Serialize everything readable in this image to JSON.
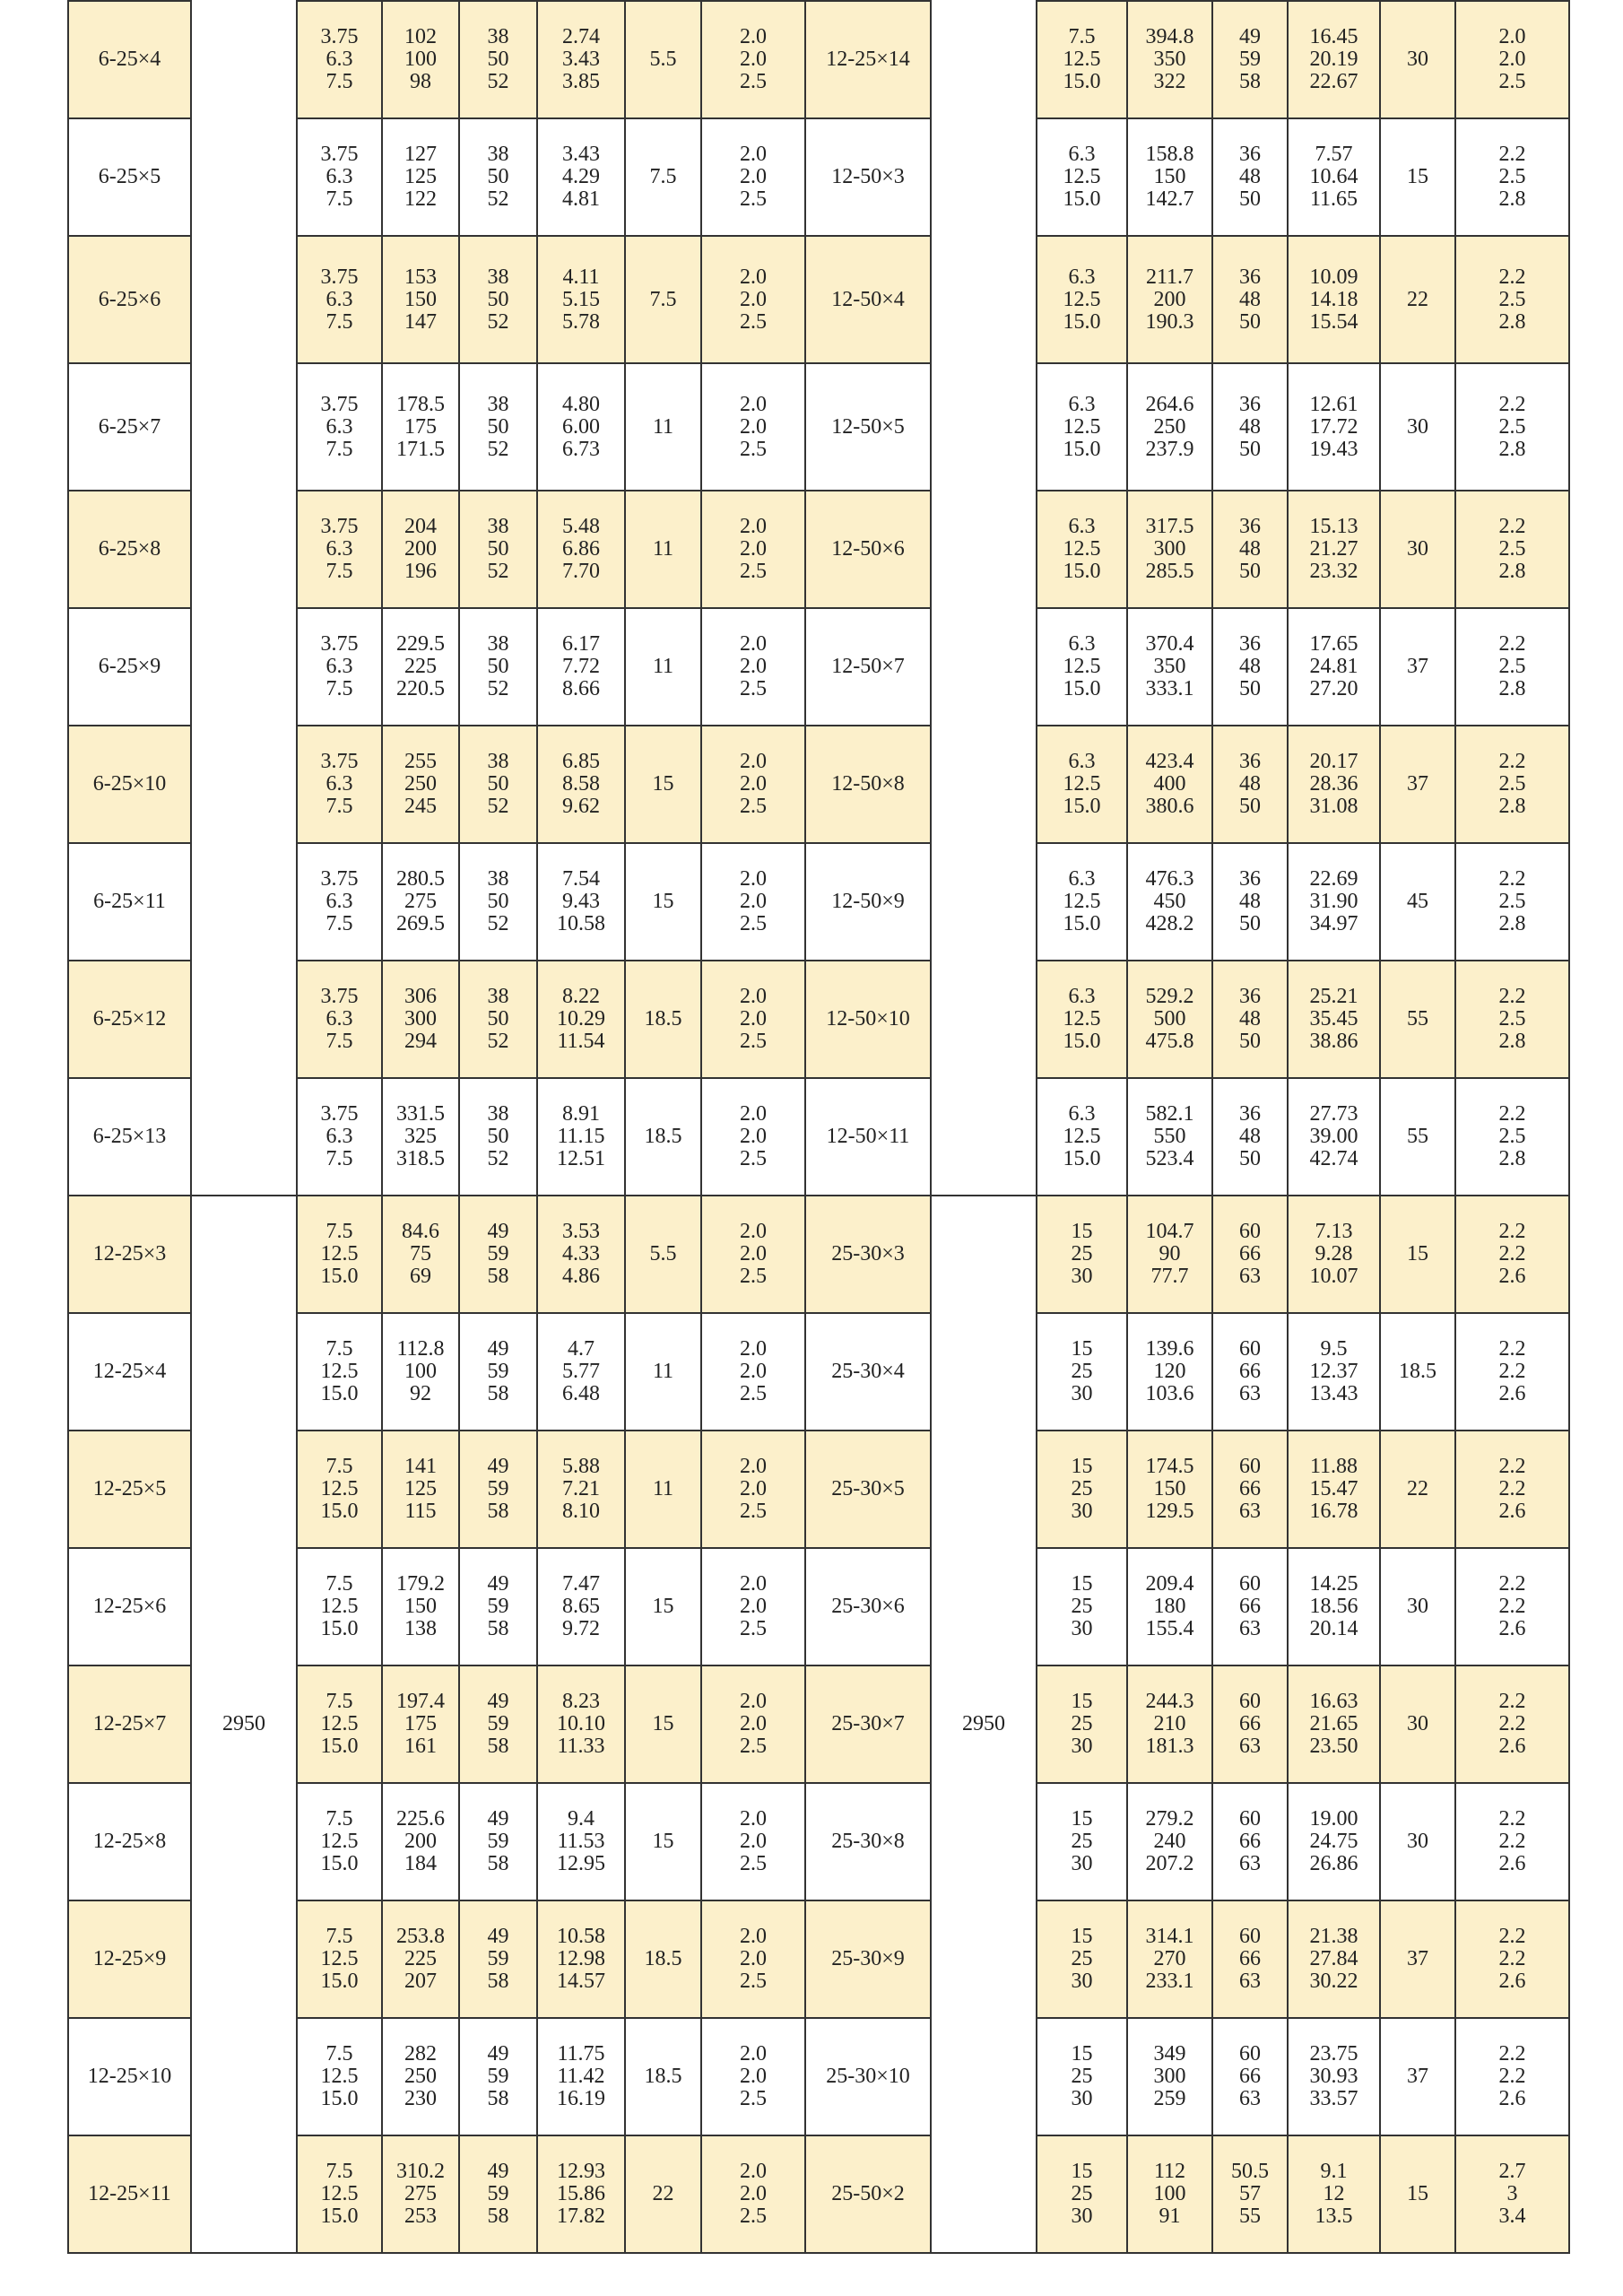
{
  "table": {
    "colors": {
      "highlight_row": "#fcf0cb",
      "plain_row": "#ffffff",
      "border": "#333333"
    },
    "merged_length": {
      "left": "2950",
      "right": "2950"
    },
    "rows": [
      {
        "left": [
          "6-25×4",
          "3.75\n6.3\n7.5",
          "102\n100\n98",
          "38\n50\n52",
          "2.74\n3.43\n3.85",
          "5.5",
          "2.0\n2.0\n2.5"
        ],
        "right": [
          "12-25×14",
          "7.5\n12.5\n15.0",
          "394.8\n350\n322",
          "49\n59\n58",
          "16.45\n20.19\n22.67",
          "30",
          "2.0\n2.0\n2.5"
        ]
      },
      {
        "left": [
          "6-25×5",
          "3.75\n6.3\n7.5",
          "127\n125\n122",
          "38\n50\n52",
          "3.43\n4.29\n4.81",
          "7.5",
          "2.0\n2.0\n2.5"
        ],
        "right": [
          "12-50×3",
          "6.3\n12.5\n15.0",
          "158.8\n150\n142.7",
          "36\n48\n50",
          "7.57\n10.64\n11.65",
          "15",
          "2.2\n2.5\n2.8"
        ]
      },
      {
        "left": [
          "6-25×6",
          "3.75\n6.3\n7.5",
          "153\n150\n147",
          "38\n50\n52",
          "4.11\n5.15\n5.78",
          "7.5",
          "2.0\n2.0\n2.5"
        ],
        "right": [
          "12-50×4",
          "6.3\n12.5\n15.0",
          "211.7\n200\n190.3",
          "36\n48\n50",
          "10.09\n14.18\n15.54",
          "22",
          "2.2\n2.5\n2.8"
        ]
      },
      {
        "left": [
          "6-25×7",
          "3.75\n6.3\n7.5",
          "178.5\n175\n171.5",
          "38\n50\n52",
          "4.80\n6.00\n6.73",
          "11",
          "2.0\n2.0\n2.5"
        ],
        "right": [
          "12-50×5",
          "6.3\n12.5\n15.0",
          "264.6\n250\n237.9",
          "36\n48\n50",
          "12.61\n17.72\n19.43",
          "30",
          "2.2\n2.5\n2.8"
        ]
      },
      {
        "left": [
          "6-25×8",
          "3.75\n6.3\n7.5",
          "204\n200\n196",
          "38\n50\n52",
          "5.48\n6.86\n7.70",
          "11",
          "2.0\n2.0\n2.5"
        ],
        "right": [
          "12-50×6",
          "6.3\n12.5\n15.0",
          "317.5\n300\n285.5",
          "36\n48\n50",
          "15.13\n21.27\n23.32",
          "30",
          "2.2\n2.5\n2.8"
        ]
      },
      {
        "left": [
          "6-25×9",
          "3.75\n6.3\n7.5",
          "229.5\n225\n220.5",
          "38\n50\n52",
          "6.17\n7.72\n8.66",
          "11",
          "2.0\n2.0\n2.5"
        ],
        "right": [
          "12-50×7",
          "6.3\n12.5\n15.0",
          "370.4\n350\n333.1",
          "36\n48\n50",
          "17.65\n24.81\n27.20",
          "37",
          "2.2\n2.5\n2.8"
        ]
      },
      {
        "left": [
          "6-25×10",
          "3.75\n6.3\n7.5",
          "255\n250\n245",
          "38\n50\n52",
          "6.85\n8.58\n9.62",
          "15",
          "2.0\n2.0\n2.5"
        ],
        "right": [
          "12-50×8",
          "6.3\n12.5\n15.0",
          "423.4\n400\n380.6",
          "36\n48\n50",
          "20.17\n28.36\n31.08",
          "37",
          "2.2\n2.5\n2.8"
        ]
      },
      {
        "left": [
          "6-25×11",
          "3.75\n6.3\n7.5",
          "280.5\n275\n269.5",
          "38\n50\n52",
          "7.54\n9.43\n10.58",
          "15",
          "2.0\n2.0\n2.5"
        ],
        "right": [
          "12-50×9",
          "6.3\n12.5\n15.0",
          "476.3\n450\n428.2",
          "36\n48\n50",
          "22.69\n31.90\n34.97",
          "45",
          "2.2\n2.5\n2.8"
        ]
      },
      {
        "left": [
          "6-25×12",
          "3.75\n6.3\n7.5",
          "306\n300\n294",
          "38\n50\n52",
          "8.22\n10.29\n11.54",
          "18.5",
          "2.0\n2.0\n2.5"
        ],
        "right": [
          "12-50×10",
          "6.3\n12.5\n15.0",
          "529.2\n500\n475.8",
          "36\n48\n50",
          "25.21\n35.45\n38.86",
          "55",
          "2.2\n2.5\n2.8"
        ]
      },
      {
        "left": [
          "6-25×13",
          "3.75\n6.3\n7.5",
          "331.5\n325\n318.5",
          "38\n50\n52",
          "8.91\n11.15\n12.51",
          "18.5",
          "2.0\n2.0\n2.5"
        ],
        "right": [
          "12-50×11",
          "6.3\n12.5\n15.0",
          "582.1\n550\n523.4",
          "36\n48\n50",
          "27.73\n39.00\n42.74",
          "55",
          "2.2\n2.5\n2.8"
        ]
      },
      {
        "left": [
          "12-25×3",
          "7.5\n12.5\n15.0",
          "84.6\n75\n69",
          "49\n59\n58",
          "3.53\n4.33\n4.86",
          "5.5",
          "2.0\n2.0\n2.5"
        ],
        "right": [
          "25-30×3",
          "15\n25\n30",
          "104.7\n90\n77.7",
          "60\n66\n63",
          "7.13\n9.28\n10.07",
          "15",
          "2.2\n2.2\n2.6"
        ]
      },
      {
        "left": [
          "12-25×4",
          "7.5\n12.5\n15.0",
          "112.8\n100\n92",
          "49\n59\n58",
          "4.7\n5.77\n6.48",
          "11",
          "2.0\n2.0\n2.5"
        ],
        "right": [
          "25-30×4",
          "15\n25\n30",
          "139.6\n120\n103.6",
          "60\n66\n63",
          "9.5\n12.37\n13.43",
          "18.5",
          "2.2\n2.2\n2.6"
        ]
      },
      {
        "left": [
          "12-25×5",
          "7.5\n12.5\n15.0",
          "141\n125\n115",
          "49\n59\n58",
          "5.88\n7.21\n8.10",
          "11",
          "2.0\n2.0\n2.5"
        ],
        "right": [
          "25-30×5",
          "15\n25\n30",
          "174.5\n150\n129.5",
          "60\n66\n63",
          "11.88\n15.47\n16.78",
          "22",
          "2.2\n2.2\n2.6"
        ]
      },
      {
        "left": [
          "12-25×6",
          "7.5\n12.5\n15.0",
          "179.2\n150\n138",
          "49\n59\n58",
          "7.47\n8.65\n9.72",
          "15",
          "2.0\n2.0\n2.5"
        ],
        "right": [
          "25-30×6",
          "15\n25\n30",
          "209.4\n180\n155.4",
          "60\n66\n63",
          "14.25\n18.56\n20.14",
          "30",
          "2.2\n2.2\n2.6"
        ]
      },
      {
        "left": [
          "12-25×7",
          "7.5\n12.5\n15.0",
          "197.4\n175\n161",
          "49\n59\n58",
          "8.23\n10.10\n11.33",
          "15",
          "2.0\n2.0\n2.5"
        ],
        "right": [
          "25-30×7",
          "15\n25\n30",
          "244.3\n210\n181.3",
          "60\n66\n63",
          "16.63\n21.65\n23.50",
          "30",
          "2.2\n2.2\n2.6"
        ]
      },
      {
        "left": [
          "12-25×8",
          "7.5\n12.5\n15.0",
          "225.6\n200\n184",
          "49\n59\n58",
          "9.4\n11.53\n12.95",
          "15",
          "2.0\n2.0\n2.5"
        ],
        "right": [
          "25-30×8",
          "15\n25\n30",
          "279.2\n240\n207.2",
          "60\n66\n63",
          "19.00\n24.75\n26.86",
          "30",
          "2.2\n2.2\n2.6"
        ]
      },
      {
        "left": [
          "12-25×9",
          "7.5\n12.5\n15.0",
          "253.8\n225\n207",
          "49\n59\n58",
          "10.58\n12.98\n14.57",
          "18.5",
          "2.0\n2.0\n2.5"
        ],
        "right": [
          "25-30×9",
          "15\n25\n30",
          "314.1\n270\n233.1",
          "60\n66\n63",
          "21.38\n27.84\n30.22",
          "37",
          "2.2\n2.2\n2.6"
        ]
      },
      {
        "left": [
          "12-25×10",
          "7.5\n12.5\n15.0",
          "282\n250\n230",
          "49\n59\n58",
          "11.75\n11.42\n16.19",
          "18.5",
          "2.0\n2.0\n2.5"
        ],
        "right": [
          "25-30×10",
          "15\n25\n30",
          "349\n300\n259",
          "60\n66\n63",
          "23.75\n30.93\n33.57",
          "37",
          "2.2\n2.2\n2.6"
        ]
      },
      {
        "left": [
          "12-25×11",
          "7.5\n12.5\n15.0",
          "310.2\n275\n253",
          "49\n59\n58",
          "12.93\n15.86\n17.82",
          "22",
          "2.0\n2.0\n2.5"
        ],
        "right": [
          "25-50×2",
          "15\n25\n30",
          "112\n100\n91",
          "50.5\n57\n55",
          "9.1\n12\n13.5",
          "15",
          "2.7\n3\n3.4"
        ]
      }
    ]
  }
}
